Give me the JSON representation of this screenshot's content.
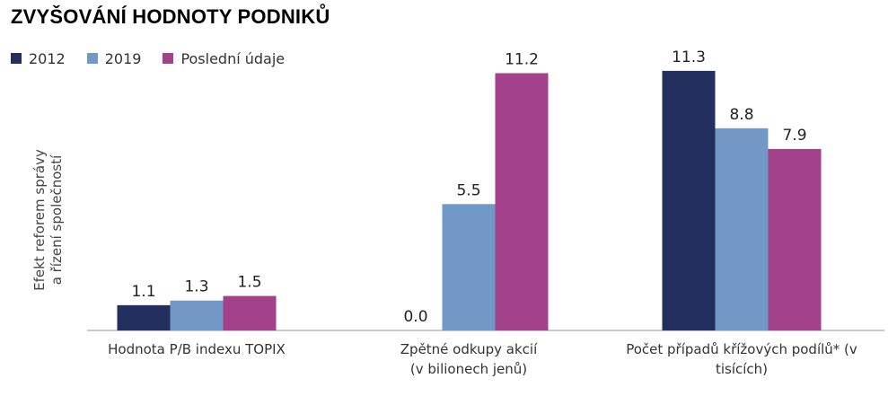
{
  "title": "ZVYŠOVÁNÍ HODNOTY PODNIKŮ",
  "ylabel_line1": "Efekt reforem správy",
  "ylabel_line2": "a řízení společností",
  "colors": {
    "2012": "#222f5f",
    "2019": "#7198c6",
    "Poslední údaje": "#a3428b"
  },
  "chart_data": {
    "type": "bar",
    "title": "ZVYŠOVÁNÍ HODNOTY PODNIKŮ",
    "ylabel": "Efekt reforem správy a řízení společností",
    "xlabel": "",
    "categories": [
      "Hodnota P/B indexu TOPIX",
      "Zpětné odkupy akcií (v bilionech jenů)",
      "Počet případů křížových podílů* (v tisících)"
    ],
    "category_lines": [
      [
        "Hodnota P/B indexu TOPIX"
      ],
      [
        "Zpětné odkupy akcií",
        "(v bilionech jenů)"
      ],
      [
        "Počet případů křížových podílů* (v",
        "tisících)"
      ]
    ],
    "series": [
      {
        "name": "2012",
        "values": [
          1.1,
          null,
          11.3
        ],
        "labels": [
          "1.1",
          "0.0",
          "11.3"
        ]
      },
      {
        "name": "2019",
        "values": [
          1.3,
          5.5,
          8.8
        ],
        "labels": [
          "1.3",
          "5.5",
          "8.8"
        ]
      },
      {
        "name": "Poslední údaje",
        "values": [
          1.5,
          11.2,
          7.9
        ],
        "labels": [
          "1.5",
          "11.2",
          "7.9"
        ]
      }
    ],
    "ylim": [
      0,
      12
    ],
    "grid": false,
    "legend": "top-left"
  }
}
